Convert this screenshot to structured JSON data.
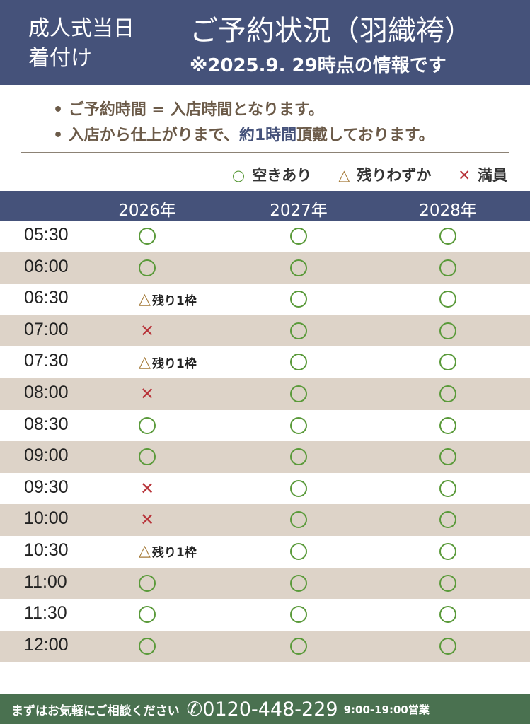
{
  "header": {
    "left_line1": "成人式当日",
    "left_line2": "着付け",
    "title": "ご予約状況（羽織袴）",
    "subtitle": "※2025.9. 29時点の情報です"
  },
  "notes": {
    "line1": "• ご予約時間 = 入店時間となります。",
    "line2_pre": "• 入店から仕上がりまで、",
    "line2_hl": "約1時間",
    "line2_post": "頂戴しております。"
  },
  "legend": {
    "available": "空きあり",
    "few": "残りわずか",
    "full": "満員"
  },
  "colors": {
    "navy": "#45527a",
    "green_circle": "#5a9a3a",
    "cross": "#b8343a",
    "triangle": "#a57a38",
    "footer": "#4a7150",
    "row_alt": "#ddd3c8"
  },
  "table": {
    "years": [
      "2026年",
      "2027年",
      "2028年"
    ],
    "few_label": "残り1枠",
    "rows": [
      {
        "time": "05:30",
        "status": [
          "o",
          "o",
          "o"
        ]
      },
      {
        "time": "06:00",
        "status": [
          "o",
          "o",
          "o"
        ]
      },
      {
        "time": "06:30",
        "status": [
          "tri",
          "o",
          "o"
        ]
      },
      {
        "time": "07:00",
        "status": [
          "x",
          "o",
          "o"
        ]
      },
      {
        "time": "07:30",
        "status": [
          "tri",
          "o",
          "o"
        ]
      },
      {
        "time": "08:00",
        "status": [
          "x",
          "o",
          "o"
        ]
      },
      {
        "time": "08:30",
        "status": [
          "o",
          "o",
          "o"
        ]
      },
      {
        "time": "09:00",
        "status": [
          "o",
          "o",
          "o"
        ]
      },
      {
        "time": "09:30",
        "status": [
          "x",
          "o",
          "o"
        ]
      },
      {
        "time": "10:00",
        "status": [
          "x",
          "o",
          "o"
        ]
      },
      {
        "time": "10:30",
        "status": [
          "tri",
          "o",
          "o"
        ]
      },
      {
        "time": "11:00",
        "status": [
          "o",
          "o",
          "o"
        ]
      },
      {
        "time": "11:30",
        "status": [
          "o",
          "o",
          "o"
        ]
      },
      {
        "time": "12:00",
        "status": [
          "o",
          "o",
          "o"
        ]
      }
    ]
  },
  "footer": {
    "text": "まずはお気軽にご相談ください",
    "phone": "0120-448-229",
    "hours": "9:00-19:00営業",
    "phone_icon": "phone-icon"
  }
}
